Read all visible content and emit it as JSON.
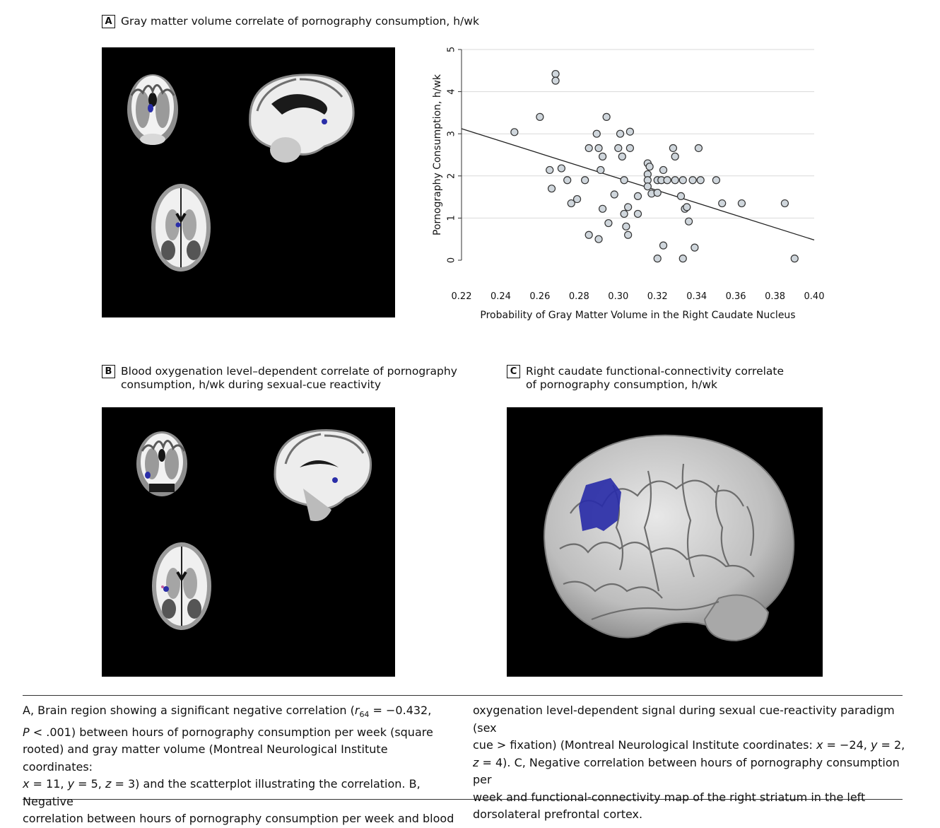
{
  "panels": {
    "a": {
      "letter": "A",
      "title": "Gray matter volume correlate of pornography consumption, h/wk"
    },
    "b": {
      "letter": "B",
      "title": "Blood oxygenation level–dependent correlate of pornography\nconsumption, h/wk during sexual-cue reactivity"
    },
    "c": {
      "letter": "C",
      "title": "Right caudate functional-connectivity correlate\nof pornography consumption, h/wk"
    }
  },
  "images": {
    "a_brain_slices": "brain-slices-gray-matter",
    "b_brain_slices": "brain-slices-bold",
    "c_brain_render": "brain-surface-render"
  },
  "colors": {
    "highlight": "#2a2ea8",
    "marker_fill": "#cfd6dc",
    "background": "#000000"
  },
  "chart_data": {
    "type": "scatter",
    "title": "",
    "xlabel": "Probability of Gray Matter Volume in the Right Caudate Nucleus",
    "ylabel": "Pornography Consumption, h/wk",
    "xlim": [
      0.22,
      0.4
    ],
    "ylim": [
      0,
      5
    ],
    "xticks": [
      "0.22",
      "0.24",
      "0.26",
      "0.28",
      "0.30",
      "0.32",
      "0.34",
      "0.36",
      "0.38",
      "0.40"
    ],
    "yticks": [
      "0",
      "1",
      "2",
      "3",
      "4",
      "5"
    ],
    "grid": "horizontal",
    "points": [
      [
        0.247,
        3.04
      ],
      [
        0.26,
        3.4
      ],
      [
        0.268,
        4.42
      ],
      [
        0.268,
        4.26
      ],
      [
        0.265,
        2.14
      ],
      [
        0.271,
        2.18
      ],
      [
        0.266,
        1.7
      ],
      [
        0.274,
        1.9
      ],
      [
        0.276,
        1.35
      ],
      [
        0.279,
        1.45
      ],
      [
        0.283,
        1.9
      ],
      [
        0.285,
        2.66
      ],
      [
        0.29,
        2.66
      ],
      [
        0.289,
        3.0
      ],
      [
        0.294,
        3.4
      ],
      [
        0.292,
        2.46
      ],
      [
        0.291,
        2.14
      ],
      [
        0.285,
        0.6
      ],
      [
        0.29,
        0.5
      ],
      [
        0.292,
        1.22
      ],
      [
        0.295,
        0.88
      ],
      [
        0.3,
        2.66
      ],
      [
        0.302,
        2.46
      ],
      [
        0.301,
        3.0
      ],
      [
        0.306,
        3.05
      ],
      [
        0.306,
        2.66
      ],
      [
        0.298,
        1.56
      ],
      [
        0.303,
        1.9
      ],
      [
        0.303,
        1.1
      ],
      [
        0.305,
        1.26
      ],
      [
        0.304,
        0.8
      ],
      [
        0.305,
        0.6
      ],
      [
        0.31,
        1.1
      ],
      [
        0.31,
        1.52
      ],
      [
        0.315,
        2.3
      ],
      [
        0.316,
        2.22
      ],
      [
        0.315,
        2.04
      ],
      [
        0.315,
        1.9
      ],
      [
        0.315,
        1.75
      ],
      [
        0.317,
        1.58
      ],
      [
        0.32,
        1.6
      ],
      [
        0.32,
        1.9
      ],
      [
        0.322,
        1.9
      ],
      [
        0.323,
        2.14
      ],
      [
        0.325,
        1.9
      ],
      [
        0.32,
        0.04
      ],
      [
        0.323,
        0.35
      ],
      [
        0.328,
        2.66
      ],
      [
        0.329,
        2.46
      ],
      [
        0.329,
        1.9
      ],
      [
        0.332,
        1.52
      ],
      [
        0.333,
        1.9
      ],
      [
        0.334,
        1.22
      ],
      [
        0.335,
        1.26
      ],
      [
        0.336,
        0.92
      ],
      [
        0.338,
        1.9
      ],
      [
        0.341,
        2.66
      ],
      [
        0.342,
        1.9
      ],
      [
        0.333,
        0.04
      ],
      [
        0.339,
        0.3
      ],
      [
        0.35,
        1.9
      ],
      [
        0.353,
        1.35
      ],
      [
        0.363,
        1.35
      ],
      [
        0.385,
        1.35
      ],
      [
        0.39,
        0.04
      ]
    ],
    "fit_line": {
      "x": [
        0.22,
        0.4
      ],
      "y": [
        3.12,
        0.48
      ]
    }
  },
  "caption": {
    "col1": {
      "l1a": "A, Brain region showing a significant negative correlation (",
      "r_sym": "r",
      "r_sub": "64",
      "l1b": " = −0.432,",
      "l2a_sym": "P",
      "l2a": " < .001) between hours of pornography consumption per week (square",
      "l3": "rooted) and gray matter volume (Montreal Neurological Institute coordinates:",
      "l4_x": "x",
      "l4_a": " = 11, ",
      "l4_y": "y",
      "l4_b": " = 5, ",
      "l4_z": "z",
      "l4_c": " = 3) and the scatterplot illustrating the correlation. B, Negative",
      "l5": "correlation between hours of pornography consumption per week and blood"
    },
    "col2": {
      "l1": "oxygenation level-dependent signal during sexual cue-reactivity paradigm (sex",
      "l2a": "cue > fixation) (Montreal Neurological Institute coordinates: ",
      "l2_x": "x",
      "l2_b": " = −24, ",
      "l2_y": "y",
      "l2_c": " = 2,",
      "l3_z": "z",
      "l3": " = 4). C, Negative correlation between hours of pornography consumption per",
      "l4": "week and functional-connectivity map of the right striatum in the left",
      "l5": "dorsolateral prefrontal cortex."
    }
  }
}
